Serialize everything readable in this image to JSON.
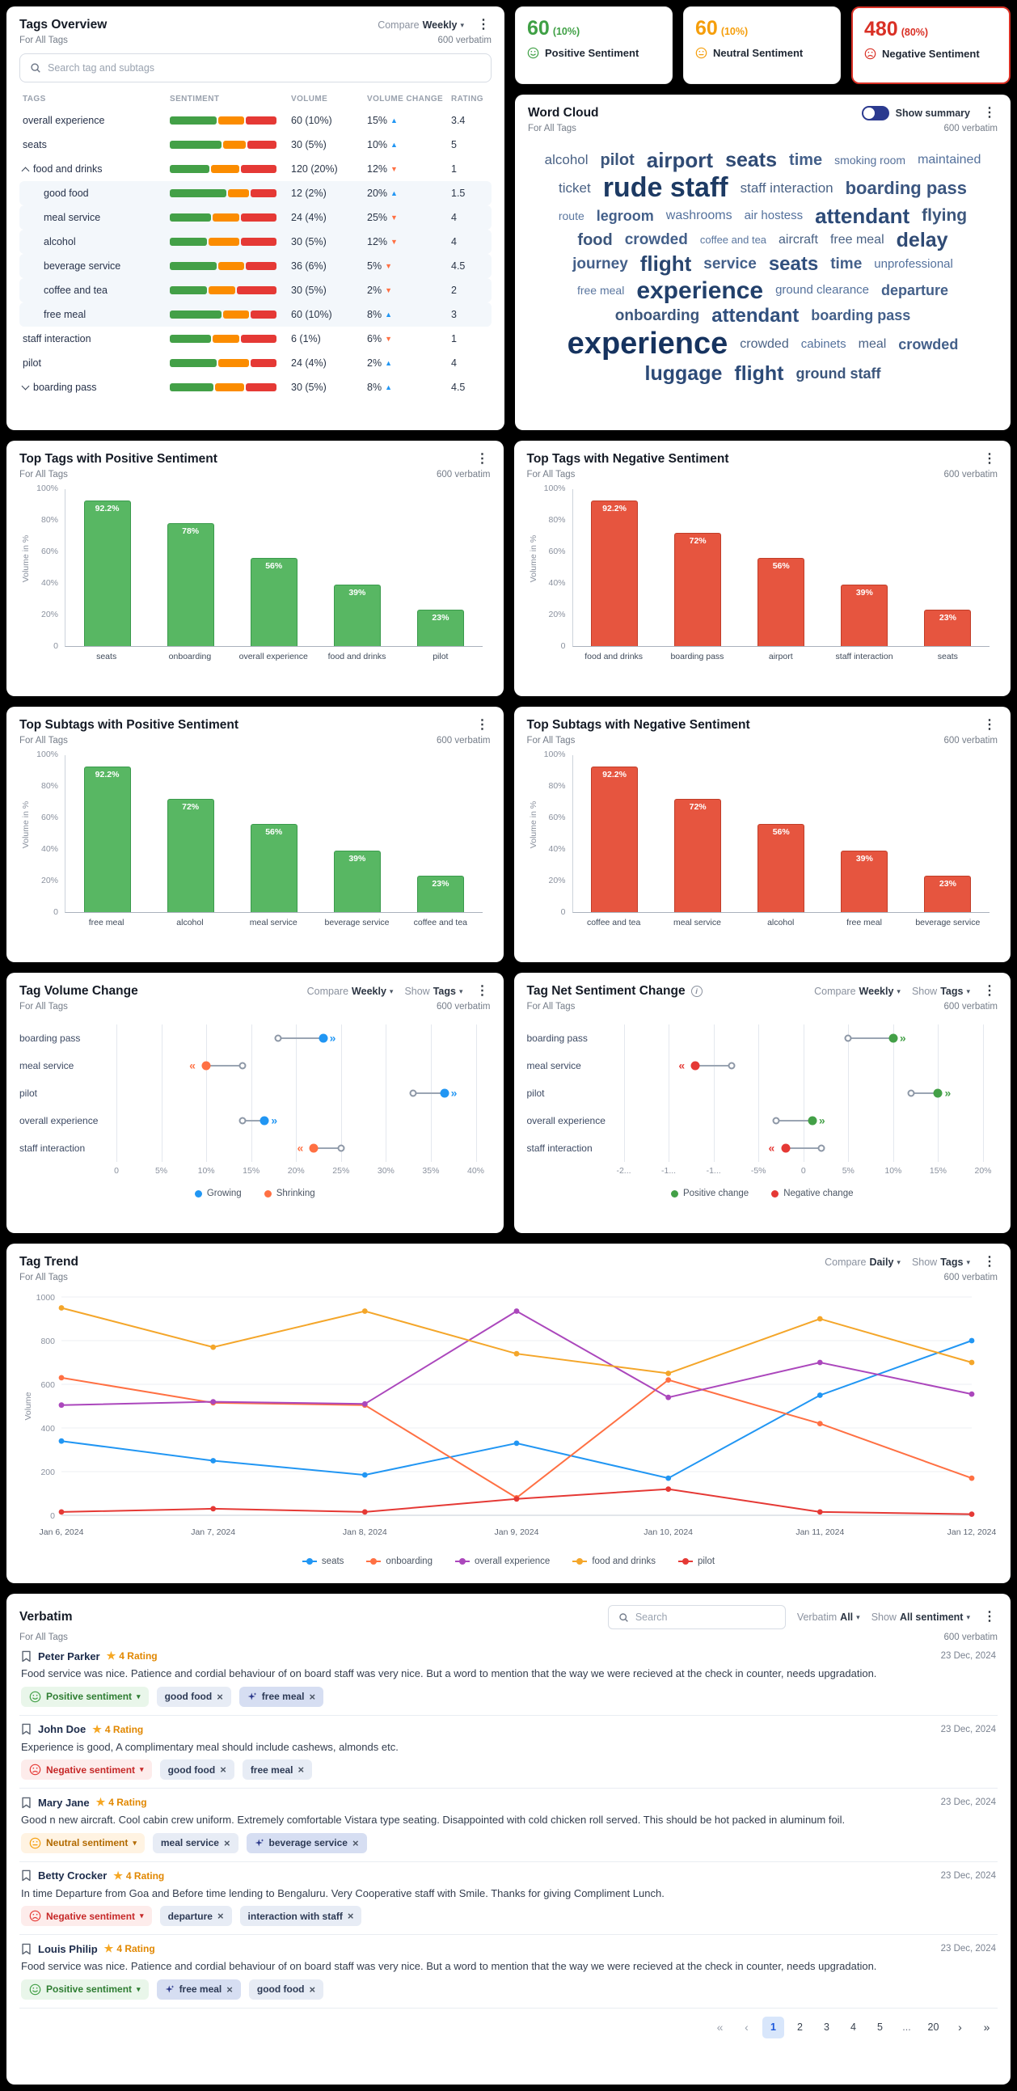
{
  "common": {
    "for_tags": "For All Tags",
    "verbatim_count": "600 verbatim",
    "compare_label": "Compare",
    "show_label": "Show"
  },
  "tags_overview": {
    "title": "Tags Overview",
    "compare_value": "Weekly",
    "search_placeholder": "Search tag and subtags",
    "columns": [
      "TAGS",
      "SENTIMENT",
      "VOLUME",
      "VOLUME CHANGE",
      "RATING"
    ],
    "rows": [
      {
        "label": "overall experience",
        "indent": 0,
        "arrow": "",
        "sentiment": [
          45,
          25,
          30
        ],
        "volume": "60 (10%)",
        "change": "15%",
        "dir": "up",
        "rating": "3.4",
        "shade": false
      },
      {
        "label": "seats",
        "indent": 0,
        "arrow": "",
        "sentiment": [
          50,
          22,
          28
        ],
        "volume": "30 (5%)",
        "change": "10%",
        "dir": "up",
        "rating": "5",
        "shade": false
      },
      {
        "label": "food and drinks",
        "indent": 0,
        "arrow": "collapse",
        "sentiment": [
          38,
          28,
          34
        ],
        "volume": "120 (20%)",
        "change": "12%",
        "dir": "down",
        "rating": "1",
        "shade": false
      },
      {
        "label": "good food",
        "indent": 1,
        "arrow": "",
        "sentiment": [
          55,
          20,
          25
        ],
        "volume": "12 (2%)",
        "change": "20%",
        "dir": "up",
        "rating": "1.5",
        "shade": true
      },
      {
        "label": "meal service",
        "indent": 1,
        "arrow": "",
        "sentiment": [
          40,
          26,
          34
        ],
        "volume": "24 (4%)",
        "change": "25%",
        "dir": "down",
        "rating": "4",
        "shade": true
      },
      {
        "label": "alcohol",
        "indent": 1,
        "arrow": "",
        "sentiment": [
          36,
          30,
          34
        ],
        "volume": "30 (5%)",
        "change": "12%",
        "dir": "down",
        "rating": "4",
        "shade": true
      },
      {
        "label": "beverage service",
        "indent": 1,
        "arrow": "",
        "sentiment": [
          45,
          25,
          30
        ],
        "volume": "36 (6%)",
        "change": "5%",
        "dir": "down",
        "rating": "4.5",
        "shade": true
      },
      {
        "label": "coffee and tea",
        "indent": 1,
        "arrow": "",
        "sentiment": [
          36,
          26,
          38
        ],
        "volume": "30 (5%)",
        "change": "2%",
        "dir": "down",
        "rating": "2",
        "shade": true
      },
      {
        "label": "free meal",
        "indent": 1,
        "arrow": "",
        "sentiment": [
          50,
          25,
          25
        ],
        "volume": "60 (10%)",
        "change": "8%",
        "dir": "up",
        "rating": "3",
        "shade": true
      },
      {
        "label": "staff interaction",
        "indent": 0,
        "arrow": "",
        "sentiment": [
          40,
          26,
          34
        ],
        "volume": "6 (1%)",
        "change": "6%",
        "dir": "down",
        "rating": "1",
        "shade": false
      },
      {
        "label": "pilot",
        "indent": 0,
        "arrow": "",
        "sentiment": [
          45,
          30,
          25
        ],
        "volume": "24 (4%)",
        "change": "2%",
        "dir": "up",
        "rating": "4",
        "shade": false
      },
      {
        "label": "boarding pass",
        "indent": 0,
        "arrow": "expand",
        "sentiment": [
          42,
          28,
          30
        ],
        "volume": "30 (5%)",
        "change": "8%",
        "dir": "up",
        "rating": "4.5",
        "shade": false
      }
    ]
  },
  "sentiment_cards": [
    {
      "type": "positive",
      "value": "60",
      "pct": "(10%)",
      "label": "Positive Sentiment",
      "color": "#3fa045"
    },
    {
      "type": "neutral",
      "value": "60",
      "pct": "(10%)",
      "label": "Neutral Sentiment",
      "color": "#f59e0b"
    },
    {
      "type": "negative",
      "value": "480",
      "pct": "(80%)",
      "label": "Negative Sentiment",
      "color": "#d93025"
    }
  ],
  "word_cloud": {
    "title": "Word Cloud",
    "toggle_label": "Show summary",
    "words": [
      {
        "text": "alcohol",
        "size": 17,
        "color": "#4a6285"
      },
      {
        "text": "pilot",
        "size": 20,
        "color": "#3c567c"
      },
      {
        "text": "airport",
        "size": 26,
        "color": "#2f4a74"
      },
      {
        "text": "seats",
        "size": 25,
        "color": "#2f4a74"
      },
      {
        "text": "time",
        "size": 20,
        "color": "#44608a"
      },
      {
        "text": "smoking room",
        "size": 14,
        "color": "#56709a"
      },
      {
        "text": "maintained",
        "size": 16,
        "color": "#54719c"
      },
      {
        "text": "ticket",
        "size": 17,
        "color": "#4a6285"
      },
      {
        "text": "rude staff",
        "size": 34,
        "color": "#1d3a63"
      },
      {
        "text": "staff interaction",
        "size": 17,
        "color": "#4a6285"
      },
      {
        "text": "boarding pass",
        "size": 22,
        "color": "#3b5680"
      },
      {
        "text": "route",
        "size": 14,
        "color": "#5a769f"
      },
      {
        "text": "legroom",
        "size": 18,
        "color": "#44608a"
      },
      {
        "text": "washrooms",
        "size": 16,
        "color": "#54719c"
      },
      {
        "text": "air hostess",
        "size": 15,
        "color": "#54719c"
      },
      {
        "text": "attendant",
        "size": 26,
        "color": "#2c4a77"
      },
      {
        "text": "flying",
        "size": 21,
        "color": "#3c567c"
      },
      {
        "text": "food",
        "size": 20,
        "color": "#3c567c"
      },
      {
        "text": "crowded",
        "size": 19,
        "color": "#44608a"
      },
      {
        "text": "coffee and tea",
        "size": 13,
        "color": "#5a769f"
      },
      {
        "text": "aircraft",
        "size": 16,
        "color": "#4a6285"
      },
      {
        "text": "free meal",
        "size": 16,
        "color": "#4a6285"
      },
      {
        "text": "delay",
        "size": 25,
        "color": "#2f4a74"
      },
      {
        "text": "journey",
        "size": 19,
        "color": "#44608a"
      },
      {
        "text": "flight",
        "size": 26,
        "color": "#28456f"
      },
      {
        "text": "service",
        "size": 19,
        "color": "#44608a"
      },
      {
        "text": "seats",
        "size": 24,
        "color": "#31507e"
      },
      {
        "text": "time",
        "size": 19,
        "color": "#44608a"
      },
      {
        "text": "unprofessional",
        "size": 15,
        "color": "#54719c"
      },
      {
        "text": "free meal",
        "size": 14,
        "color": "#5a769f"
      },
      {
        "text": "experience",
        "size": 30,
        "color": "#22406b"
      },
      {
        "text": "ground clearance",
        "size": 15,
        "color": "#54719c"
      },
      {
        "text": "departure",
        "size": 18,
        "color": "#44608a"
      },
      {
        "text": "onboarding",
        "size": 19,
        "color": "#3c567c"
      },
      {
        "text": "attendant",
        "size": 24,
        "color": "#31507e"
      },
      {
        "text": "boarding pass",
        "size": 18,
        "color": "#44608a"
      },
      {
        "text": "experience",
        "size": 38,
        "color": "#16335f"
      },
      {
        "text": "crowded",
        "size": 16,
        "color": "#4a6285"
      },
      {
        "text": "cabinets",
        "size": 15,
        "color": "#54719c"
      },
      {
        "text": "meal",
        "size": 16,
        "color": "#4a6285"
      },
      {
        "text": "crowded",
        "size": 18,
        "color": "#44608a"
      },
      {
        "text": "luggage",
        "size": 25,
        "color": "#2c4a77"
      },
      {
        "text": "flight",
        "size": 25,
        "color": "#2c4a77"
      },
      {
        "text": "ground staff",
        "size": 18,
        "color": "#3c567c"
      }
    ]
  },
  "bar_charts": [
    {
      "type": "bar",
      "title": "Top Tags with Positive Sentiment",
      "ylabel": "Volume in %",
      "yticks": [
        "100%",
        "80%",
        "60%",
        "40%",
        "20%",
        "0"
      ],
      "fill": "#58b763",
      "stroke": "#3a9a4c",
      "categories": [
        "seats",
        "onboarding",
        "overall experience",
        "food and drinks",
        "pilot"
      ],
      "values": [
        92.2,
        78,
        56,
        39,
        23
      ],
      "labels": [
        "92.2%",
        "78%",
        "56%",
        "39%",
        "23%"
      ]
    },
    {
      "type": "bar",
      "title": "Top Tags with Negative Sentiment",
      "ylabel": "Volume in %",
      "yticks": [
        "100%",
        "80%",
        "60%",
        "40%",
        "20%",
        "0"
      ],
      "fill": "#e6553f",
      "stroke": "#c03d28",
      "categories": [
        "food and drinks",
        "boarding pass",
        "airport",
        "staff interaction",
        "seats"
      ],
      "values": [
        92.2,
        72,
        56,
        39,
        23
      ],
      "labels": [
        "92.2%",
        "72%",
        "56%",
        "39%",
        "23%"
      ]
    },
    {
      "type": "bar",
      "title": "Top Subtags with Positive Sentiment",
      "ylabel": "Volume in %",
      "yticks": [
        "100%",
        "80%",
        "60%",
        "40%",
        "20%",
        "0"
      ],
      "fill": "#58b763",
      "stroke": "#3a9a4c",
      "categories": [
        "free meal",
        "alcohol",
        "meal service",
        "beverage service",
        "coffee and tea"
      ],
      "values": [
        92.2,
        72,
        56,
        39,
        23
      ],
      "labels": [
        "92.2%",
        "72%",
        "56%",
        "39%",
        "23%"
      ]
    },
    {
      "type": "bar",
      "title": "Top Subtags with Negative Sentiment",
      "ylabel": "Volume in %",
      "yticks": [
        "100%",
        "80%",
        "60%",
        "40%",
        "20%",
        "0"
      ],
      "fill": "#e6553f",
      "stroke": "#c03d28",
      "categories": [
        "coffee and tea",
        "meal service",
        "alcohol",
        "free meal",
        "beverage service"
      ],
      "values": [
        92.2,
        72,
        56,
        39,
        23
      ],
      "labels": [
        "92.2%",
        "72%",
        "56%",
        "39%",
        "23%"
      ]
    }
  ],
  "dumbbell_charts": [
    {
      "type": "dumbbell",
      "title": "Tag Volume Change",
      "has_info": false,
      "compare_value": "Weekly",
      "show_value": "Tags",
      "xmin": 0,
      "xmax": 40,
      "xticks": [
        "0",
        "5%",
        "10%",
        "15%",
        "20%",
        "25%",
        "30%",
        "35%",
        "40%"
      ],
      "colors": {
        "grow": "#2196f3",
        "shrink": "#ff7043"
      },
      "rows": [
        {
          "label": "boarding pass",
          "from": 18,
          "to": 23,
          "type": "grow"
        },
        {
          "label": "meal service",
          "from": 14,
          "to": 10,
          "type": "shrink"
        },
        {
          "label": "pilot",
          "from": 33,
          "to": 36.5,
          "type": "grow"
        },
        {
          "label": "overall experience",
          "from": 14,
          "to": 16.5,
          "type": "grow"
        },
        {
          "label": "staff interaction",
          "from": 25,
          "to": 22,
          "type": "shrink"
        }
      ],
      "legend": [
        {
          "label": "Growing",
          "color": "#2196f3"
        },
        {
          "label": "Shrinking",
          "color": "#ff7043"
        }
      ]
    },
    {
      "type": "dumbbell",
      "title": "Tag Net Sentiment Change",
      "has_info": true,
      "compare_value": "Weekly",
      "show_value": "Tags",
      "xmin": -20,
      "xmax": 20,
      "xticks": [
        "-2...",
        "-1...",
        "-1...",
        "-5%",
        "0",
        "5%",
        "10%",
        "15%",
        "20%"
      ],
      "colors": {
        "pos": "#43a047",
        "neg": "#e53935"
      },
      "rows": [
        {
          "label": "boarding pass",
          "from": 5,
          "to": 10,
          "type": "pos"
        },
        {
          "label": "meal service",
          "from": -8,
          "to": -12,
          "type": "neg"
        },
        {
          "label": "pilot",
          "from": 12,
          "to": 15,
          "type": "pos"
        },
        {
          "label": "overall experience",
          "from": -3,
          "to": 1,
          "type": "pos"
        },
        {
          "label": "staff interaction",
          "from": 2,
          "to": -2,
          "type": "neg"
        }
      ],
      "legend": [
        {
          "label": "Positive change",
          "color": "#43a047"
        },
        {
          "label": "Negative change",
          "color": "#e53935"
        }
      ]
    }
  ],
  "trend": {
    "type": "line",
    "title": "Tag Trend",
    "compare_value": "Daily",
    "show_value": "Tags",
    "ylabel": "Volume",
    "yticks": [
      0,
      200,
      400,
      600,
      800,
      1000
    ],
    "x": [
      "Jan 6, 2024",
      "Jan 7, 2024",
      "Jan 8, 2024",
      "Jan 9, 2024",
      "Jan 10, 2024",
      "Jan 11, 2024",
      "Jan 12, 2024"
    ],
    "series": [
      {
        "name": "seats",
        "color": "#2196f3",
        "values": [
          340,
          250,
          185,
          330,
          170,
          550,
          800
        ]
      },
      {
        "name": "onboarding",
        "color": "#ff7043",
        "values": [
          630,
          515,
          505,
          80,
          620,
          420,
          170
        ]
      },
      {
        "name": "overall experience",
        "color": "#ab47bc",
        "values": [
          505,
          520,
          510,
          935,
          540,
          700,
          555
        ]
      },
      {
        "name": "food and drinks",
        "color": "#f4a62a",
        "values": [
          950,
          770,
          935,
          740,
          650,
          900,
          700
        ]
      },
      {
        "name": "pilot",
        "color": "#e53935",
        "values": [
          15,
          30,
          15,
          75,
          120,
          15,
          5
        ]
      }
    ]
  },
  "verbatim": {
    "title": "Verbatim",
    "search_placeholder": "Search",
    "filter1_label": "Verbatim",
    "filter1_value": "All",
    "filter2_label": "Show",
    "filter2_value": "All sentiment",
    "sentiment_styles": {
      "positive": {
        "bg": "#e9f6ea",
        "text": "#2e7d32",
        "icon": "#43a047"
      },
      "neutral": {
        "bg": "#fff3e2",
        "text": "#b26a00",
        "icon": "#f59e0b"
      },
      "negative": {
        "bg": "#fdeceb",
        "text": "#c62828",
        "icon": "#e53935"
      }
    },
    "reviews": [
      {
        "name": "Peter Parker",
        "rating": "4 Rating",
        "date": "23 Dec, 2024",
        "text": "Food service was nice. Patience and cordial behaviour of on board staff was very nice. But a word to mention that the way we were recieved at the check in counter, needs upgradation.",
        "sentiment_type": "positive",
        "sentiment_label": "Positive sentiment",
        "chips": [
          {
            "label": "good food",
            "ai": false
          },
          {
            "label": "free meal",
            "ai": true
          }
        ]
      },
      {
        "name": "John Doe",
        "rating": "4 Rating",
        "date": "23 Dec, 2024",
        "text": "Experience is good, A complimentary meal should include cashews, almonds etc.",
        "sentiment_type": "negative",
        "sentiment_label": "Negative sentiment",
        "chips": [
          {
            "label": "good food",
            "ai": false
          },
          {
            "label": "free meal",
            "ai": false
          }
        ]
      },
      {
        "name": "Mary Jane",
        "rating": "4 Rating",
        "date": "23 Dec, 2024",
        "text": "Good n new aircraft. Cool cabin crew uniform. Extremely comfortable Vistara type seating. Disappointed with cold chicken roll served. This should be hot packed in aluminum foil.",
        "sentiment_type": "neutral",
        "sentiment_label": "Neutral sentiment",
        "chips": [
          {
            "label": "meal service",
            "ai": false
          },
          {
            "label": "beverage service",
            "ai": true
          }
        ]
      },
      {
        "name": "Betty Crocker",
        "rating": "4 Rating",
        "date": "23 Dec, 2024",
        "text": "In time Departure from Goa and Before time lending to Bengaluru. Very Cooperative staff with Smile. Thanks for giving Compliment Lunch.",
        "sentiment_type": "negative",
        "sentiment_label": "Negative sentiment",
        "chips": [
          {
            "label": "departure",
            "ai": false
          },
          {
            "label": "interaction with staff",
            "ai": false
          }
        ]
      },
      {
        "name": "Louis Philip",
        "rating": "4 Rating",
        "date": "23 Dec, 2024",
        "text": "Food service was nice. Patience and cordial behaviour of on board staff was very nice. But a word to mention that the way we were recieved at the check in counter, needs upgradation.",
        "sentiment_type": "positive",
        "sentiment_label": "Positive sentiment",
        "chips": [
          {
            "label": "free meal",
            "ai": true
          },
          {
            "label": "good food",
            "ai": false
          }
        ]
      }
    ],
    "pagination": {
      "first": "«",
      "prev": "‹",
      "next": "›",
      "last": "»",
      "pages": [
        "1",
        "2",
        "3",
        "4",
        "5",
        "...",
        "20"
      ],
      "active": "1"
    }
  }
}
